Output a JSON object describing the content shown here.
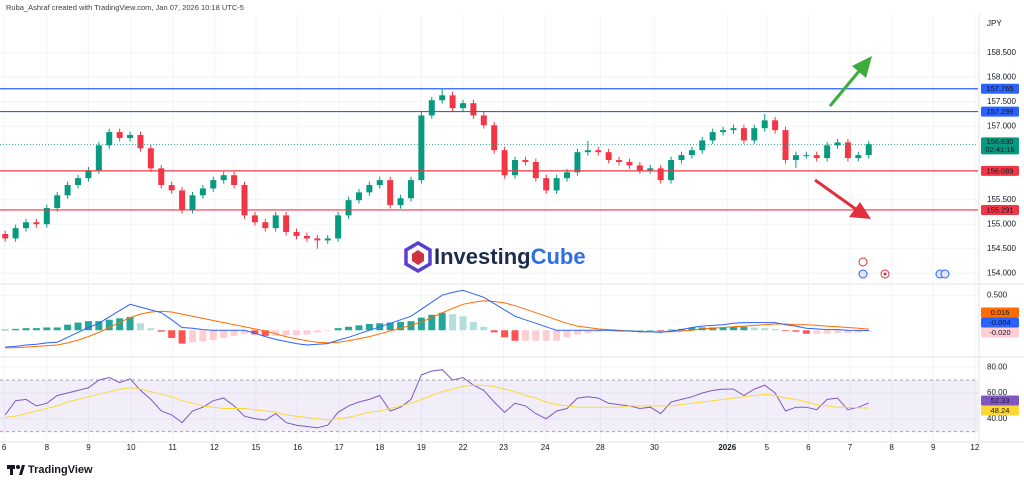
{
  "header": {
    "title": "Ruba_Ashraf created with TradingView.com, Jan 07, 2026 10:18 UTC-5"
  },
  "watermark": [
    "Investing",
    "Cube"
  ],
  "footer_logo": "TradingView",
  "chart_data": [
    {
      "type": "candlestick",
      "currency": "JPY",
      "open": [
        154.8,
        154.71,
        154.92,
        155.04,
        155.0,
        155.33,
        155.59,
        155.8,
        155.94,
        156.1,
        156.61,
        156.88,
        156.76,
        156.82,
        156.55,
        156.14,
        155.8,
        155.69,
        155.29,
        155.59,
        155.73,
        155.9,
        156.0,
        155.8,
        155.18,
        155.04,
        154.92,
        155.18,
        154.84,
        154.76,
        154.71,
        154.67,
        154.71,
        155.18,
        155.49,
        155.65,
        155.8,
        155.9,
        155.39,
        155.53,
        155.9,
        157.22,
        157.53,
        157.63,
        157.37,
        157.47,
        157.22,
        157.02,
        156.51,
        156.0,
        156.31,
        156.27,
        155.94,
        155.69,
        155.94,
        156.06,
        156.47,
        156.51,
        156.47,
        156.31,
        156.27,
        156.2,
        156.1,
        156.14,
        155.9,
        156.31,
        156.41,
        156.51,
        156.71,
        156.88,
        156.92,
        156.96,
        156.71,
        156.96,
        157.12,
        156.92,
        156.31,
        156.41,
        156.41,
        156.35,
        156.61,
        156.67,
        156.35,
        156.41
      ],
      "high": [
        154.87,
        154.99,
        155.11,
        155.11,
        155.4,
        155.66,
        155.87,
        156.01,
        156.17,
        156.68,
        156.95,
        156.95,
        156.89,
        156.89,
        156.62,
        156.21,
        155.87,
        155.76,
        155.66,
        155.8,
        155.97,
        156.07,
        156.07,
        155.87,
        155.25,
        155.11,
        155.25,
        155.25,
        154.91,
        154.83,
        154.78,
        154.78,
        155.25,
        155.56,
        155.72,
        155.87,
        155.97,
        155.97,
        155.6,
        155.97,
        157.29,
        157.6,
        157.75,
        157.7,
        157.54,
        157.54,
        157.29,
        157.09,
        156.58,
        156.38,
        156.38,
        156.34,
        156.01,
        156.01,
        156.13,
        156.54,
        156.7,
        156.58,
        156.54,
        156.38,
        156.34,
        156.27,
        156.21,
        156.21,
        156.38,
        156.48,
        156.58,
        156.78,
        156.95,
        156.99,
        157.03,
        157.03,
        157.03,
        157.25,
        157.19,
        156.99,
        156.48,
        156.48,
        156.48,
        156.68,
        156.74,
        156.74,
        156.48,
        156.7
      ],
      "low": [
        154.64,
        154.64,
        154.85,
        154.93,
        154.93,
        155.26,
        155.52,
        155.73,
        155.87,
        156.03,
        156.54,
        156.69,
        156.69,
        156.48,
        156.07,
        155.73,
        155.62,
        155.22,
        155.22,
        155.52,
        155.66,
        155.83,
        155.73,
        155.11,
        154.97,
        154.85,
        154.85,
        154.77,
        154.69,
        154.64,
        154.5,
        154.6,
        154.64,
        155.11,
        155.42,
        155.58,
        155.73,
        155.32,
        155.32,
        155.46,
        155.83,
        157.15,
        157.46,
        157.3,
        157.3,
        157.15,
        156.95,
        156.44,
        155.93,
        155.93,
        156.2,
        155.87,
        155.62,
        155.62,
        155.87,
        155.99,
        156.4,
        156.4,
        156.24,
        156.2,
        156.13,
        156.03,
        156.03,
        155.83,
        155.83,
        156.24,
        156.34,
        156.44,
        156.64,
        156.81,
        156.85,
        156.64,
        156.64,
        156.89,
        156.85,
        156.24,
        156.15,
        156.34,
        156.28,
        156.28,
        156.54,
        156.28,
        156.28,
        156.34
      ],
      "close": [
        154.71,
        154.92,
        155.04,
        155.0,
        155.33,
        155.59,
        155.8,
        155.94,
        156.1,
        156.61,
        156.88,
        156.76,
        156.82,
        156.55,
        156.14,
        155.8,
        155.69,
        155.29,
        155.59,
        155.73,
        155.9,
        156.0,
        155.8,
        155.18,
        155.04,
        154.92,
        155.18,
        154.84,
        154.76,
        154.71,
        154.67,
        154.71,
        155.18,
        155.49,
        155.65,
        155.8,
        155.9,
        155.39,
        155.53,
        155.9,
        157.22,
        157.53,
        157.63,
        157.37,
        157.47,
        157.22,
        157.02,
        156.51,
        156.0,
        156.31,
        156.27,
        155.94,
        155.69,
        155.94,
        156.06,
        156.47,
        156.51,
        156.47,
        156.31,
        156.27,
        156.2,
        156.1,
        156.14,
        155.9,
        156.31,
        156.41,
        156.51,
        156.71,
        156.88,
        156.92,
        156.96,
        156.71,
        156.96,
        157.12,
        156.92,
        156.31,
        156.41,
        156.41,
        156.35,
        156.61,
        156.67,
        156.35,
        156.41,
        156.63
      ],
      "up_color": "#089981",
      "down_color": "#f23645",
      "xlim": [
        0,
        94
      ],
      "ylim": [
        153.8,
        159.27
      ],
      "yticks": [
        {
          "value": 158.5,
          "label": "158.500"
        },
        {
          "value": 158,
          "label": "158.000"
        },
        {
          "value": 157.5,
          "label": "157.500"
        },
        {
          "value": 157,
          "label": "157.000"
        },
        {
          "value": 155.5,
          "label": "155.500"
        },
        {
          "value": 155,
          "label": "155.000"
        },
        {
          "value": 154.5,
          "label": "154.500"
        },
        {
          "value": 154,
          "label": "154.000"
        }
      ],
      "levels": [
        {
          "value": 157.765,
          "color": "#2962ff"
        },
        {
          "value": 157.299,
          "color": "#2962ff"
        },
        {
          "value": 156.089,
          "color": "#f23645"
        },
        {
          "value": 155.291,
          "color": "#f23645"
        }
      ],
      "last_price_label": "156.630",
      "countdown": "02:41:16",
      "grid": true
    },
    {
      "type": "macd",
      "xlim": [
        0,
        94
      ],
      "ylim": [
        -0.31,
        0.66
      ],
      "yticks": [
        {
          "value": 0.5,
          "label": "0.500"
        }
      ],
      "histogram": {
        "values": [
          0.01,
          0.02,
          0.03,
          0.03,
          0.04,
          0.04,
          0.08,
          0.11,
          0.13,
          0.13,
          0.15,
          0.17,
          0.19,
          0.1,
          0.03,
          -0.02,
          -0.11,
          -0.19,
          -0.17,
          -0.16,
          -0.14,
          -0.11,
          -0.08,
          -0.05,
          -0.06,
          -0.08,
          -0.08,
          -0.07,
          -0.07,
          -0.06,
          -0.03,
          -0.01,
          0.03,
          0.05,
          0.07,
          0.09,
          0.1,
          0.11,
          0.12,
          0.13,
          0.18,
          0.22,
          0.25,
          0.23,
          0.2,
          0.12,
          0.05,
          -0.03,
          -0.1,
          -0.15,
          -0.15,
          -0.15,
          -0.15,
          -0.15,
          -0.1,
          -0.06,
          -0.04,
          -0.02,
          -0.01,
          -0.01,
          0.0,
          0.0,
          0.0,
          -0.01,
          0.01,
          0.02,
          0.04,
          0.04,
          0.04,
          0.04,
          0.05,
          0.05,
          0.04,
          0.03,
          0.02,
          -0.01,
          -0.02,
          -0.05,
          -0.05,
          -0.05,
          -0.04,
          -0.04,
          -0.032,
          -0.02
        ],
        "colors": {
          "pos_up": "#26a69a",
          "pos_down": "#b2dfdb",
          "neg_up": "#ffcdd2",
          "neg_down": "#ff5252"
        },
        "color": "#ffcdd2",
        "last_label": "-0.020"
      },
      "series": [
        {
          "color": "#ff6d00",
          "values": [
            -0.25,
            -0.25,
            -0.24,
            -0.23,
            -0.22,
            -0.21,
            -0.18,
            -0.14,
            -0.09,
            -0.03,
            0.04,
            0.11,
            0.18,
            0.23,
            0.26,
            0.27,
            0.26,
            0.23,
            0.2,
            0.17,
            0.14,
            0.11,
            0.08,
            0.05,
            0.02,
            -0.01,
            -0.05,
            -0.09,
            -0.12,
            -0.15,
            -0.17,
            -0.18,
            -0.17,
            -0.15,
            -0.12,
            -0.09,
            -0.05,
            -0.01,
            0.03,
            0.07,
            0.12,
            0.18,
            0.25,
            0.31,
            0.37,
            0.4,
            0.42,
            0.41,
            0.39,
            0.35,
            0.3,
            0.25,
            0.2,
            0.15,
            0.1,
            0.06,
            0.04,
            0.02,
            0.01,
            0.0,
            -0.01,
            -0.02,
            -0.02,
            -0.02,
            -0.02,
            -0.01,
            0.0,
            0.02,
            0.03,
            0.04,
            0.05,
            0.06,
            0.07,
            0.08,
            0.09,
            0.09,
            0.08,
            0.08,
            0.07,
            0.06,
            0.05,
            0.04,
            0.03,
            0.016
          ]
        },
        {
          "color": "#2962ff",
          "values": [
            -0.24,
            -0.23,
            -0.21,
            -0.2,
            -0.18,
            -0.17,
            -0.1,
            -0.03,
            0.04,
            0.1,
            0.19,
            0.28,
            0.37,
            0.33,
            0.29,
            0.25,
            0.15,
            0.04,
            0.03,
            0.01,
            0.0,
            0.0,
            0.0,
            0.0,
            -0.04,
            -0.09,
            -0.13,
            -0.16,
            -0.19,
            -0.21,
            -0.2,
            -0.19,
            -0.14,
            -0.1,
            -0.05,
            0.0,
            0.05,
            0.1,
            0.15,
            0.2,
            0.3,
            0.4,
            0.5,
            0.54,
            0.57,
            0.52,
            0.47,
            0.38,
            0.29,
            0.2,
            0.15,
            0.1,
            0.05,
            0.0,
            0.0,
            0.0,
            0.0,
            0.0,
            0.0,
            -0.01,
            -0.01,
            -0.02,
            -0.02,
            -0.03,
            -0.01,
            0.01,
            0.04,
            0.06,
            0.07,
            0.08,
            0.1,
            0.11,
            0.11,
            0.11,
            0.11,
            0.08,
            0.06,
            0.03,
            0.02,
            0.01,
            0.01,
            0.0,
            -0.002,
            -0.004
          ]
        }
      ]
    },
    {
      "type": "line",
      "xlim": [
        0,
        94
      ],
      "ylim": [
        22,
        84
      ],
      "band": [
        30,
        70
      ],
      "band_color": "#7e57c2",
      "yticks": [
        {
          "value": 80,
          "label": "80.00"
        },
        {
          "value": 60,
          "label": "60.00"
        },
        {
          "value": 40,
          "label": "40.00"
        }
      ],
      "xticks": [
        {
          "value": 0.4,
          "label": "6"
        },
        {
          "value": 4.5,
          "label": "8"
        },
        {
          "value": 8.5,
          "label": "9"
        },
        {
          "value": 12.6,
          "label": "10"
        },
        {
          "value": 16.6,
          "label": "11"
        },
        {
          "value": 20.6,
          "label": "12"
        },
        {
          "value": 24.6,
          "label": "15"
        },
        {
          "value": 28.6,
          "label": "16"
        },
        {
          "value": 32.6,
          "label": "17"
        },
        {
          "value": 36.5,
          "label": "18"
        },
        {
          "value": 40.5,
          "label": "19"
        },
        {
          "value": 44.5,
          "label": "22"
        },
        {
          "value": 48.4,
          "label": "23"
        },
        {
          "value": 52.4,
          "label": "24"
        },
        {
          "value": 57.7,
          "label": "28"
        },
        {
          "value": 62.9,
          "label": "30"
        },
        {
          "value": 69.9,
          "label": "2026",
          "bold": true
        },
        {
          "value": 73.7,
          "label": "5"
        },
        {
          "value": 77.7,
          "label": "6"
        },
        {
          "value": 81.7,
          "label": "7"
        },
        {
          "value": 85.7,
          "label": "8"
        },
        {
          "value": 89.7,
          "label": "9"
        },
        {
          "value": 93.7,
          "label": "12"
        }
      ],
      "series": [
        {
          "color": "#7e57c2",
          "values": [
            43,
            54,
            55,
            50,
            52,
            58,
            60,
            62,
            64,
            70,
            72,
            68,
            71,
            62,
            55,
            46,
            43,
            37,
            46,
            49,
            54,
            56,
            50,
            42,
            40,
            39,
            44,
            37,
            35,
            34,
            33,
            35,
            45,
            50,
            53,
            55,
            58,
            46,
            49,
            55,
            74,
            77,
            78,
            70,
            72,
            66,
            62,
            53,
            45,
            52,
            50,
            44,
            40,
            46,
            48,
            56,
            57,
            56,
            52,
            51,
            50,
            48,
            49,
            44,
            53,
            55,
            57,
            60,
            62,
            63,
            63,
            58,
            63,
            66,
            60,
            46,
            49,
            49,
            47,
            55,
            56,
            47,
            49,
            52.33
          ]
        },
        {
          "color": "#fdd835",
          "values": [
            41,
            42,
            44,
            46,
            48,
            50,
            53,
            55,
            57,
            59,
            61,
            63,
            64,
            63,
            61,
            59,
            57,
            54,
            52,
            50,
            49,
            48,
            48,
            48,
            47,
            46,
            45,
            43,
            42,
            41,
            40,
            39,
            40,
            41,
            43,
            45,
            46,
            48,
            50,
            52,
            55,
            58,
            61,
            63,
            65,
            66,
            66,
            65,
            63,
            61,
            58,
            56,
            53,
            51,
            50,
            49,
            49,
            49,
            49,
            49,
            50,
            50,
            50,
            50,
            50,
            51,
            52,
            53,
            54,
            55,
            56,
            57,
            58,
            59,
            58,
            56,
            55,
            53,
            51,
            50,
            49,
            49,
            48.5,
            48.24
          ]
        }
      ]
    }
  ]
}
